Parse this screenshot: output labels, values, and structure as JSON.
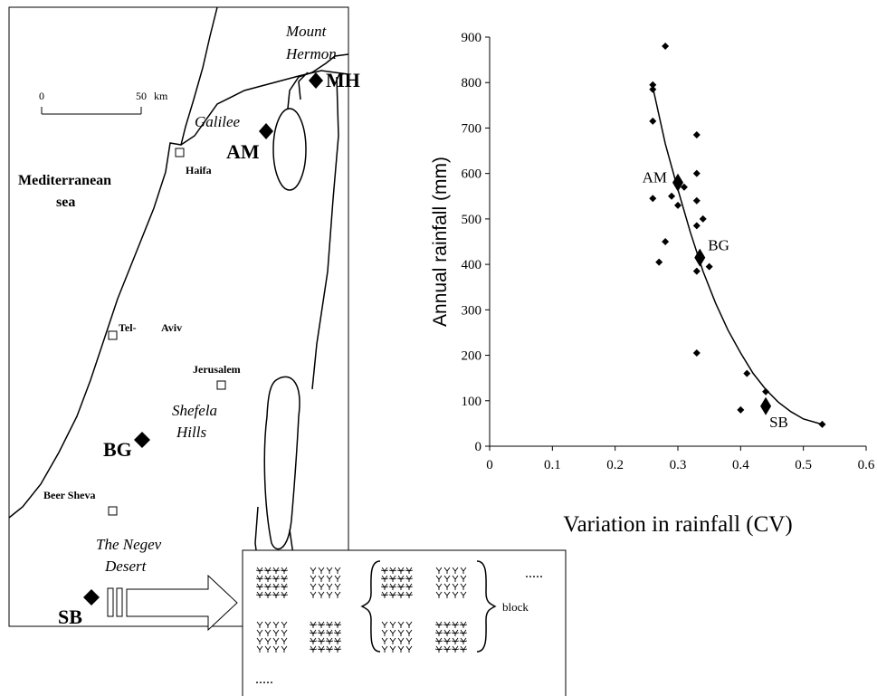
{
  "map": {
    "mount_hermon": [
      "Mount",
      "Hermon"
    ],
    "mh": "MH",
    "scale": {
      "start": "0",
      "end": "50",
      "unit": "km"
    },
    "galilee": "Galilee",
    "am": "AM",
    "haifa": "Haifa",
    "sea": [
      "Mediterranean",
      "sea"
    ],
    "tel_aviv": [
      "Tel-",
      "Aviv"
    ],
    "jerusalem": "Jerusalem",
    "shefela": [
      "Shefela",
      "Hills"
    ],
    "bg": "BG",
    "beer_sheva": "Beer Sheva",
    "negev": [
      "The Negev",
      "Desert"
    ],
    "sb": "SB"
  },
  "inset": {
    "dots_top": ".....",
    "dots_bottom": ".....",
    "block": "block"
  },
  "chart_data": {
    "type": "scatter",
    "x_label": "Variation in rainfall (CV)",
    "y_label": "Annual rainfall (mm)",
    "xlim": [
      0,
      0.6
    ],
    "ylim": [
      0,
      900
    ],
    "xticks": [
      0,
      0.1,
      0.2,
      0.3,
      0.4,
      0.5,
      0.6
    ],
    "yticks": [
      0,
      100,
      200,
      300,
      400,
      500,
      600,
      700,
      800,
      900
    ],
    "color": "#000000",
    "x": [
      0.28,
      0.26,
      0.26,
      0.26,
      0.33,
      0.33,
      0.26,
      0.29,
      0.31,
      0.33,
      0.34,
      0.33,
      0.3,
      0.28,
      0.27,
      0.35,
      0.33,
      0.33,
      0.41,
      0.44,
      0.4,
      0.53
    ],
    "values": [
      880,
      795,
      785,
      715,
      685,
      600,
      545,
      550,
      570,
      540,
      500,
      485,
      530,
      450,
      405,
      395,
      385,
      205,
      160,
      120,
      80,
      48
    ],
    "sites": {
      "labels": [
        "AM",
        "BG",
        "SB"
      ],
      "x": [
        0.3,
        0.335,
        0.44
      ],
      "values": [
        580,
        415,
        88
      ]
    },
    "trend": {
      "x": [
        0.26,
        0.28,
        0.3,
        0.32,
        0.34,
        0.36,
        0.38,
        0.4,
        0.42,
        0.44,
        0.46,
        0.48,
        0.5,
        0.53
      ],
      "values": [
        790,
        665,
        565,
        470,
        385,
        315,
        255,
        205,
        160,
        125,
        97,
        76,
        60,
        48
      ]
    }
  }
}
